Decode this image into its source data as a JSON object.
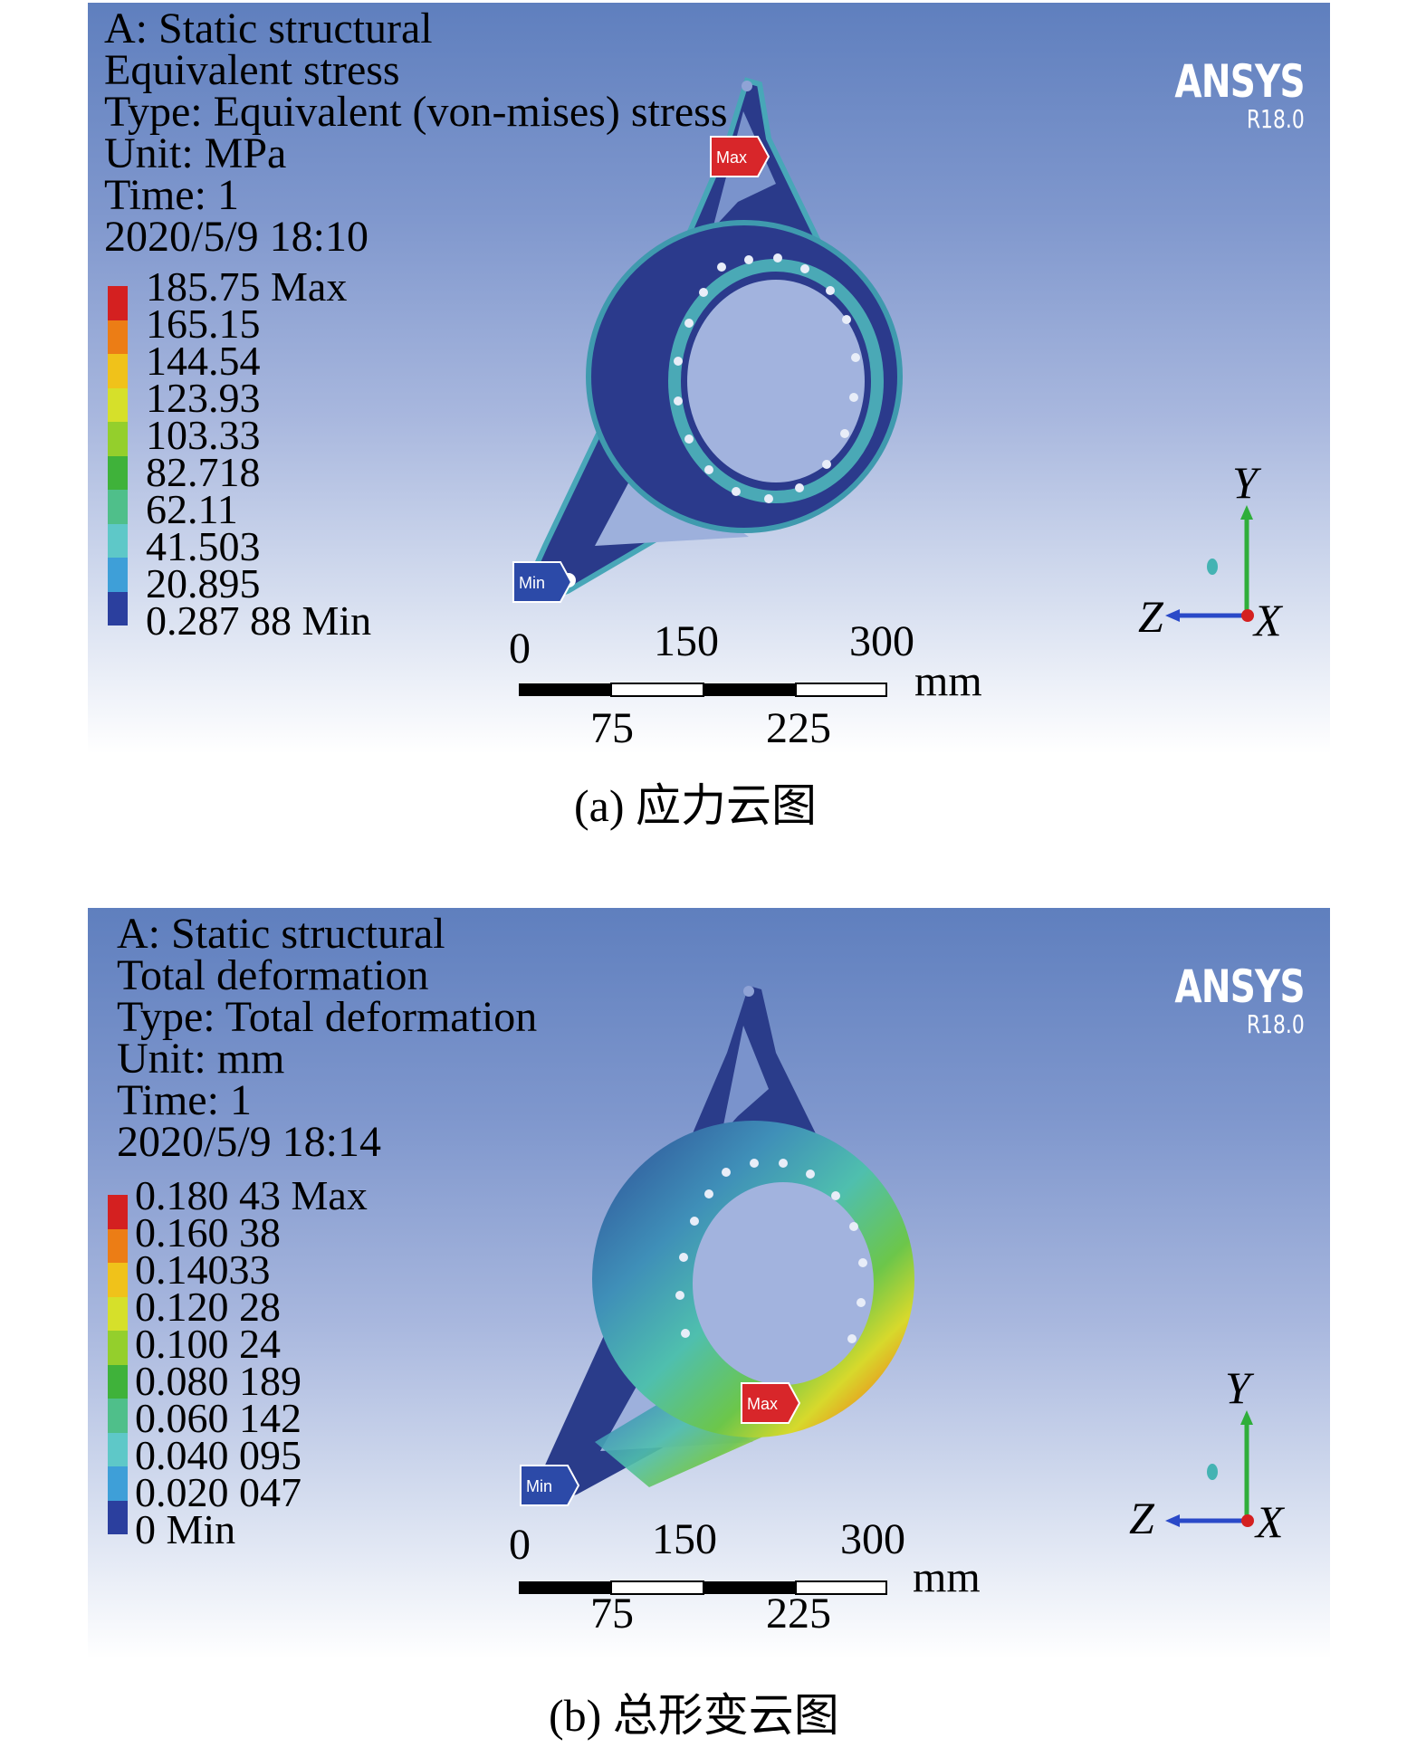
{
  "panels": [
    {
      "info": [
        "A: Static structural",
        "Equivalent stress",
        "Type: Equivalent (von-mises) stress",
        "Unit: MPa",
        "Time: 1",
        "2020/5/9 18:10"
      ],
      "legend": [
        "185.75 Max",
        "165.15",
        "144.54",
        "123.93",
        "103.33",
        "82.718",
        "62.11",
        "41.503",
        "20.895",
        "0.287 88 Min"
      ],
      "max_tag": "Max",
      "min_tag": "Min",
      "caption": "(a) 应力云图"
    },
    {
      "info": [
        "A: Static structural",
        "Total deformation",
        "Type: Total deformation",
        "Unit: mm",
        "Time: 1",
        "2020/5/9 18:14"
      ],
      "legend": [
        "0.180 43 Max",
        "0.160 38",
        "0.14033",
        "0.120 28",
        "0.100 24",
        "0.080 189",
        "0.060 142",
        "0.040 095",
        "0.020 047",
        "0 Min"
      ],
      "max_tag": "Max",
      "min_tag": "Min",
      "caption": "(b) 总形变云图"
    }
  ],
  "branding": {
    "name": "ANSYS",
    "version": "R18.0"
  },
  "scale_bar": {
    "top": [
      "0",
      "150",
      "300"
    ],
    "unit": "mm",
    "bottom": [
      "75",
      "225"
    ]
  },
  "axes": {
    "y": "Y",
    "z": "Z",
    "x": "X"
  },
  "legend_colors": [
    "#d42020",
    "#ec7d15",
    "#f0c21a",
    "#d6e02a",
    "#94cf2c",
    "#3fb23a",
    "#4fbf8a",
    "#5ec8c8",
    "#3e9fd8",
    "#2b3f9e"
  ]
}
